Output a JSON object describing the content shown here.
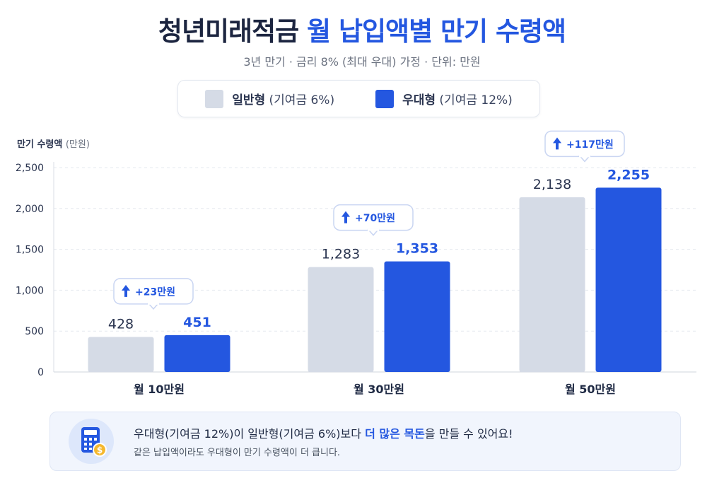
{
  "header": {
    "title_dark": "청년미래적금",
    "title_blue": "월 납입액별 만기 수령액",
    "subtitle": "3년 만기 · 금리 8% (최대 우대) 가정 · 단위: 만원"
  },
  "legend": {
    "items": [
      {
        "name": "일반형",
        "detail": "(기여금 6%)",
        "color": "#d5dbe6"
      },
      {
        "name": "우대형",
        "detail": "(기여금 12%)",
        "color": "#2457e0"
      }
    ]
  },
  "axis": {
    "title": "만기 수령액",
    "unit": "(만원)"
  },
  "chart_data": {
    "type": "bar",
    "categories": [
      "월 10만원",
      "월 30만원",
      "월 50만원"
    ],
    "series": [
      {
        "name": "일반형 (기여금 6%)",
        "values": [
          428,
          1283,
          2138
        ],
        "labels": [
          "428",
          "1,283",
          "2,138"
        ]
      },
      {
        "name": "우대형 (기여금 12%)",
        "values": [
          451,
          1353,
          2255
        ],
        "labels": [
          "451",
          "1,353",
          "2,255"
        ]
      }
    ],
    "differences": [
      "+23만원",
      "+70만원",
      "+117만원"
    ],
    "ylabel": "만기 수령액 (만원)",
    "ylim": [
      0,
      2500
    ],
    "yticks": [
      0,
      500,
      1000,
      1500,
      2000,
      2500
    ],
    "ytick_labels": [
      "0",
      "500",
      "1,000",
      "1,500",
      "2,000",
      "2,500"
    ],
    "grid": true,
    "colors": {
      "general": "#d5dbe6",
      "preferred": "#2457e0",
      "text": "#2b3550",
      "highlight": "#2457e0"
    }
  },
  "callout": {
    "main_before": "우대형(기여금 12%)이 일반형(기여금 6%)보다 ",
    "main_highlight": "더 많은 목돈",
    "main_after": "을 만들 수 있어요!",
    "sub": "같은 납입액이라도 우대형이 만기 수령액이 더 큽니다.",
    "icon": "calculator-icon"
  }
}
